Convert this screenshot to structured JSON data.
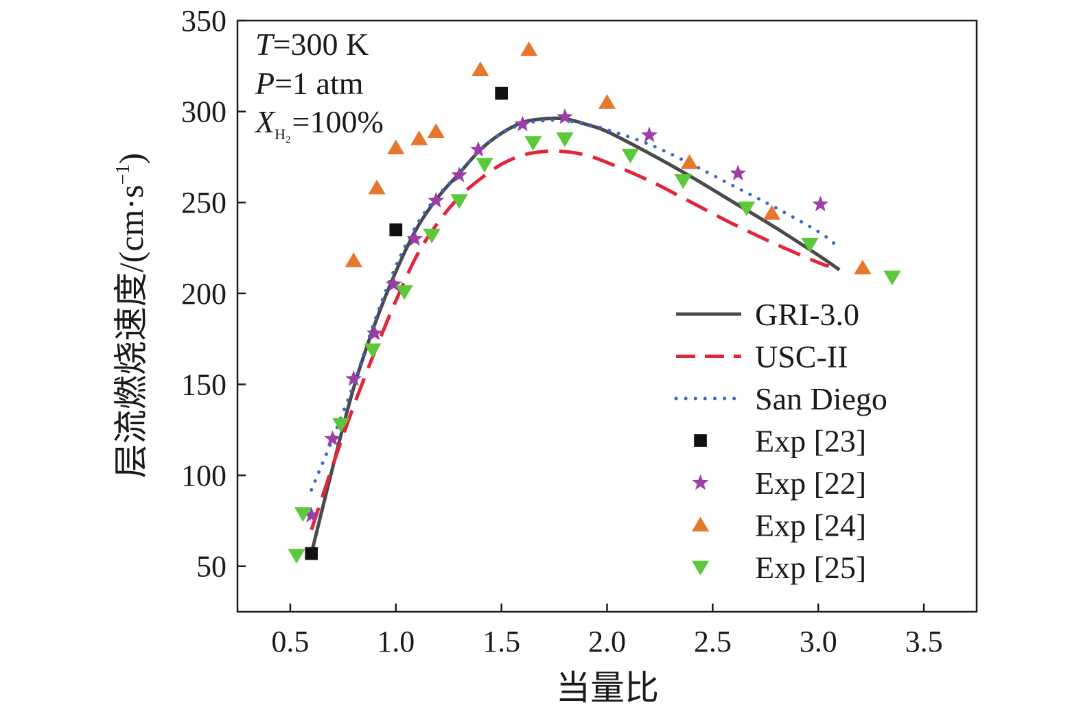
{
  "chart_data": {
    "type": "line",
    "title": "",
    "xlabel": "当量比",
    "ylabel": {
      "main": "层流燃烧速度/(cm·s",
      "sup": "−1",
      "close": ")"
    },
    "xlim": [
      0.25,
      3.75
    ],
    "ylim": [
      25,
      350
    ],
    "x_ticks": [
      0.5,
      1.0,
      1.5,
      2.0,
      2.5,
      3.0,
      3.5
    ],
    "x_tick_labels": [
      "0.5",
      "1.0",
      "1.5",
      "2.0",
      "2.5",
      "3.0",
      "3.5"
    ],
    "y_ticks": [
      50,
      100,
      150,
      200,
      250,
      300,
      350
    ],
    "y_tick_labels": [
      "50",
      "100",
      "150",
      "200",
      "250",
      "300",
      "350"
    ],
    "grid": false,
    "legend_position": "bottom-right",
    "conditions": {
      "line1_var": "T",
      "line1_rest": "=300 K",
      "line2_var": "P",
      "line2_rest": "=1 atm",
      "line3_var": "X",
      "line3_sub": "H",
      "line3_sub2": "2",
      "line3_rest": "=100%"
    },
    "series": [
      {
        "name": "GRI-3.0",
        "kind": "line",
        "style": "solid",
        "color": "#4a4a4a",
        "x": [
          0.6,
          0.7,
          0.8,
          0.9,
          1.0,
          1.1,
          1.2,
          1.3,
          1.4,
          1.5,
          1.6,
          1.7,
          1.8,
          1.9,
          2.0,
          2.2,
          2.4,
          2.6,
          2.8,
          3.0,
          3.1
        ],
        "y": [
          57,
          104,
          148,
          183,
          212,
          236,
          253,
          266,
          279,
          288,
          294,
          296,
          296,
          293,
          289,
          277,
          264,
          250,
          236,
          221,
          213
        ]
      },
      {
        "name": "USC-II",
        "kind": "line",
        "style": "dashed",
        "color": "#e0263a",
        "x": [
          0.6,
          0.7,
          0.8,
          0.9,
          1.0,
          1.1,
          1.2,
          1.3,
          1.4,
          1.5,
          1.6,
          1.7,
          1.8,
          1.9,
          2.0,
          2.2,
          2.4,
          2.6,
          2.8,
          3.0,
          3.05
        ],
        "y": [
          70,
          105,
          138,
          168,
          196,
          221,
          239,
          253,
          263,
          271,
          276,
          278,
          278,
          276,
          272,
          262,
          250,
          238,
          227,
          217,
          215
        ]
      },
      {
        "name": "San Diego",
        "kind": "line",
        "style": "dotted",
        "color": "#3a66c4",
        "x": [
          0.6,
          0.7,
          0.8,
          0.9,
          1.0,
          1.1,
          1.2,
          1.3,
          1.4,
          1.5,
          1.6,
          1.7,
          1.8,
          1.9,
          2.0,
          2.2,
          2.4,
          2.6,
          2.8,
          3.0,
          3.08
        ],
        "y": [
          92,
          120,
          150,
          185,
          215,
          238,
          254,
          266,
          279,
          288,
          293,
          295,
          295,
          293,
          290,
          282,
          271,
          259,
          247,
          234,
          227
        ]
      },
      {
        "name": "Exp [23]",
        "kind": "scatter",
        "marker": "square",
        "color": "#111111",
        "x": [
          0.6,
          1.0,
          1.5
        ],
        "y": [
          57,
          235,
          310
        ]
      },
      {
        "name": "Exp [22]",
        "kind": "scatter",
        "marker": "star",
        "color": "#9b3fa6",
        "x": [
          0.6,
          0.7,
          0.8,
          0.9,
          0.99,
          1.09,
          1.19,
          1.3,
          1.39,
          1.6,
          1.8,
          2.2,
          2.62,
          3.01
        ],
        "y": [
          78,
          120,
          153,
          178,
          205,
          230,
          251,
          265,
          279,
          293,
          297,
          287,
          266,
          249
        ]
      },
      {
        "name": "Exp [24]",
        "kind": "scatter",
        "marker": "triangle-up",
        "color": "#e8772e",
        "x": [
          0.8,
          0.91,
          1.0,
          1.11,
          1.19,
          1.4,
          1.63,
          2.0,
          2.39,
          2.78,
          3.21
        ],
        "y": [
          218,
          258,
          280,
          285,
          289,
          323,
          334,
          305,
          272,
          244,
          214
        ]
      },
      {
        "name": "Exp [25]",
        "kind": "scatter",
        "marker": "triangle-down",
        "color": "#5cc83a",
        "x": [
          0.53,
          0.56,
          0.74,
          0.89,
          1.04,
          1.17,
          1.3,
          1.42,
          1.65,
          1.8,
          2.11,
          2.36,
          2.66,
          2.96,
          3.35
        ],
        "y": [
          56,
          79,
          128,
          169,
          201,
          232,
          251,
          271,
          283,
          285,
          276,
          262,
          247,
          227,
          209
        ]
      }
    ]
  }
}
